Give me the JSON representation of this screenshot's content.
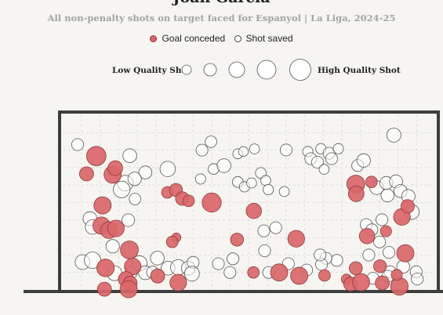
{
  "title": "Joan García",
  "subtitle": "All non-penalty shots on target faced for Espanyol | La Liga, 2024-25",
  "legend": {
    "goal": "Goal conceded",
    "saved": "Shot saved"
  },
  "size_legend": {
    "low": "Low Quality Shot",
    "high": "High Quality Shot"
  },
  "colors": {
    "goal_fill": "#d96669",
    "goal_stroke": "#8f3a3c",
    "saved_fill": "#ffffff",
    "saved_stroke": "#555555",
    "goal_frame": "#3d3d3d",
    "grid": "#d9d9d4"
  },
  "chart_data": {
    "type": "scatter",
    "title": "Joan García",
    "subtitle": "All non-penalty shots on target faced for Espanyol | La Liga, 2024-25",
    "grid": true,
    "x_range": [
      0,
      1
    ],
    "y_range": [
      0,
      1
    ],
    "series": [
      {
        "name": "Goal conceded",
        "outcome": "goal",
        "points": [
          {
            "x": 0.09,
            "y": 0.766,
            "q": 0.7
          },
          {
            "x": 0.064,
            "y": 0.664,
            "q": 0.42
          },
          {
            "x": 0.134,
            "y": 0.66,
            "q": 0.58
          },
          {
            "x": 0.141,
            "y": 0.697,
            "q": 0.45
          },
          {
            "x": 0.107,
            "y": 0.484,
            "q": 0.58
          },
          {
            "x": 0.104,
            "y": 0.368,
            "q": 0.58
          },
          {
            "x": 0.124,
            "y": 0.342,
            "q": 0.56
          },
          {
            "x": 0.143,
            "y": 0.352,
            "q": 0.55
          },
          {
            "x": 0.179,
            "y": 0.229,
            "q": 0.62
          },
          {
            "x": 0.188,
            "y": 0.134,
            "q": 0.55
          },
          {
            "x": 0.17,
            "y": 0.061,
            "q": 0.48
          },
          {
            "x": 0.115,
            "y": 0.126,
            "q": 0.6
          },
          {
            "x": 0.181,
            "y": 0.039,
            "q": 0.4
          },
          {
            "x": 0.112,
            "y": 0.004,
            "q": 0.42
          },
          {
            "x": 0.177,
            "y": 0.004,
            "q": 0.58
          },
          {
            "x": 0.281,
            "y": 0.558,
            "q": 0.28
          },
          {
            "x": 0.304,
            "y": 0.572,
            "q": 0.36
          },
          {
            "x": 0.321,
            "y": 0.523,
            "q": 0.38
          },
          {
            "x": 0.4,
            "y": 0.5,
            "q": 0.68
          },
          {
            "x": 0.338,
            "y": 0.51,
            "q": 0.28
          },
          {
            "x": 0.305,
            "y": 0.3,
            "q": 0.15
          },
          {
            "x": 0.294,
            "y": 0.275,
            "q": 0.28
          },
          {
            "x": 0.255,
            "y": 0.08,
            "q": 0.42
          },
          {
            "x": 0.31,
            "y": 0.042,
            "q": 0.55
          },
          {
            "x": 0.513,
            "y": 0.452,
            "q": 0.48
          },
          {
            "x": 0.468,
            "y": 0.288,
            "q": 0.36
          },
          {
            "x": 0.627,
            "y": 0.293,
            "q": 0.56
          },
          {
            "x": 0.512,
            "y": 0.1,
            "q": 0.28
          },
          {
            "x": 0.581,
            "y": 0.1,
            "q": 0.58
          },
          {
            "x": 0.635,
            "y": 0.081,
            "q": 0.58
          },
          {
            "x": 0.703,
            "y": 0.083,
            "q": 0.28
          },
          {
            "x": 0.787,
            "y": 0.606,
            "q": 0.62
          },
          {
            "x": 0.788,
            "y": 0.55,
            "q": 0.5
          },
          {
            "x": 0.829,
            "y": 0.618,
            "q": 0.28
          },
          {
            "x": 0.817,
            "y": 0.308,
            "q": 0.48
          },
          {
            "x": 0.868,
            "y": 0.336,
            "q": 0.26
          },
          {
            "x": 0.911,
            "y": 0.418,
            "q": 0.56
          },
          {
            "x": 0.926,
            "y": 0.478,
            "q": 0.38
          },
          {
            "x": 0.92,
            "y": 0.21,
            "q": 0.58
          },
          {
            "x": 0.787,
            "y": 0.124,
            "q": 0.36
          },
          {
            "x": 0.852,
            "y": 0.136,
            "q": 0.35
          },
          {
            "x": 0.762,
            "y": 0.061,
            "q": 0.22
          },
          {
            "x": 0.773,
            "y": 0.034,
            "q": 0.4
          },
          {
            "x": 0.801,
            "y": 0.044,
            "q": 0.58
          },
          {
            "x": 0.858,
            "y": 0.04,
            "q": 0.42
          },
          {
            "x": 0.904,
            "y": 0.02,
            "q": 0.6
          },
          {
            "x": 0.897,
            "y": 0.086,
            "q": 0.26
          }
        ]
      },
      {
        "name": "Shot saved",
        "outcome": "saved",
        "points": [
          {
            "x": 0.04,
            "y": 0.832,
            "q": 0.3
          },
          {
            "x": 0.18,
            "y": 0.768,
            "q": 0.4
          },
          {
            "x": 0.282,
            "y": 0.692,
            "q": 0.48
          },
          {
            "x": 0.222,
            "y": 0.672,
            "q": 0.36
          },
          {
            "x": 0.168,
            "y": 0.611,
            "q": 0.5
          },
          {
            "x": 0.158,
            "y": 0.575,
            "q": 0.55
          },
          {
            "x": 0.193,
            "y": 0.636,
            "q": 0.38
          },
          {
            "x": 0.073,
            "y": 0.408,
            "q": 0.4
          },
          {
            "x": 0.08,
            "y": 0.36,
            "q": 0.44
          },
          {
            "x": 0.194,
            "y": 0.52,
            "q": 0.28
          },
          {
            "x": 0.176,
            "y": 0.399,
            "q": 0.34
          },
          {
            "x": 0.134,
            "y": 0.25,
            "q": 0.38
          },
          {
            "x": 0.053,
            "y": 0.159,
            "q": 0.45
          },
          {
            "x": 0.08,
            "y": 0.17,
            "q": 0.54
          },
          {
            "x": 0.139,
            "y": 0.096,
            "q": 0.46
          },
          {
            "x": 0.184,
            "y": 0.1,
            "q": 0.3
          },
          {
            "x": 0.206,
            "y": 0.152,
            "q": 0.48
          },
          {
            "x": 0.222,
            "y": 0.098,
            "q": 0.4
          },
          {
            "x": 0.254,
            "y": 0.182,
            "q": 0.4
          },
          {
            "x": 0.241,
            "y": 0.102,
            "q": 0.3
          },
          {
            "x": 0.283,
            "y": 0.124,
            "q": 0.4
          },
          {
            "x": 0.31,
            "y": 0.129,
            "q": 0.48
          },
          {
            "x": 0.337,
            "y": 0.124,
            "q": 0.4
          },
          {
            "x": 0.35,
            "y": 0.158,
            "q": 0.3
          },
          {
            "x": 0.347,
            "y": 0.093,
            "q": 0.46
          },
          {
            "x": 0.374,
            "y": 0.8,
            "q": 0.3
          },
          {
            "x": 0.398,
            "y": 0.848,
            "q": 0.28
          },
          {
            "x": 0.37,
            "y": 0.635,
            "q": 0.22
          },
          {
            "x": 0.405,
            "y": 0.692,
            "q": 0.24
          },
          {
            "x": 0.433,
            "y": 0.711,
            "q": 0.4
          },
          {
            "x": 0.47,
            "y": 0.779,
            "q": 0.2
          },
          {
            "x": 0.485,
            "y": 0.792,
            "q": 0.18
          },
          {
            "x": 0.515,
            "y": 0.807,
            "q": 0.2
          },
          {
            "x": 0.47,
            "y": 0.618,
            "q": 0.24
          },
          {
            "x": 0.488,
            "y": 0.59,
            "q": 0.22
          },
          {
            "x": 0.507,
            "y": 0.612,
            "q": 0.2
          },
          {
            "x": 0.532,
            "y": 0.669,
            "q": 0.24
          },
          {
            "x": 0.545,
            "y": 0.627,
            "q": 0.2
          },
          {
            "x": 0.552,
            "y": 0.574,
            "q": 0.22
          },
          {
            "x": 0.595,
            "y": 0.563,
            "q": 0.2
          },
          {
            "x": 0.6,
            "y": 0.801,
            "q": 0.3
          },
          {
            "x": 0.658,
            "y": 0.792,
            "q": 0.22
          },
          {
            "x": 0.693,
            "y": 0.808,
            "q": 0.22
          },
          {
            "x": 0.715,
            "y": 0.782,
            "q": 0.3
          },
          {
            "x": 0.666,
            "y": 0.751,
            "q": 0.3
          },
          {
            "x": 0.684,
            "y": 0.731,
            "q": 0.3
          },
          {
            "x": 0.722,
            "y": 0.751,
            "q": 0.3
          },
          {
            "x": 0.702,
            "y": 0.69,
            "q": 0.2
          },
          {
            "x": 0.74,
            "y": 0.808,
            "q": 0.22
          },
          {
            "x": 0.889,
            "y": 0.886,
            "q": 0.42
          },
          {
            "x": 0.792,
            "y": 0.712,
            "q": 0.3
          },
          {
            "x": 0.808,
            "y": 0.741,
            "q": 0.38
          },
          {
            "x": 0.843,
            "y": 0.585,
            "q": 0.4
          },
          {
            "x": 0.869,
            "y": 0.612,
            "q": 0.36
          },
          {
            "x": 0.872,
            "y": 0.541,
            "q": 0.36
          },
          {
            "x": 0.895,
            "y": 0.621,
            "q": 0.36
          },
          {
            "x": 0.907,
            "y": 0.566,
            "q": 0.36
          },
          {
            "x": 0.928,
            "y": 0.536,
            "q": 0.38
          },
          {
            "x": 0.937,
            "y": 0.446,
            "q": 0.46
          },
          {
            "x": 0.857,
            "y": 0.402,
            "q": 0.3
          },
          {
            "x": 0.815,
            "y": 0.374,
            "q": 0.3
          },
          {
            "x": 0.83,
            "y": 0.344,
            "q": 0.3
          },
          {
            "x": 0.851,
            "y": 0.275,
            "q": 0.3
          },
          {
            "x": 0.822,
            "y": 0.2,
            "q": 0.3
          },
          {
            "x": 0.876,
            "y": 0.215,
            "q": 0.3
          },
          {
            "x": 0.736,
            "y": 0.169,
            "q": 0.3
          },
          {
            "x": 0.707,
            "y": 0.181,
            "q": 0.3
          },
          {
            "x": 0.695,
            "y": 0.146,
            "q": 0.3
          },
          {
            "x": 0.691,
            "y": 0.2,
            "q": 0.3
          },
          {
            "x": 0.879,
            "y": 0.104,
            "q": 0.3
          },
          {
            "x": 0.914,
            "y": 0.133,
            "q": 0.36
          },
          {
            "x": 0.949,
            "y": 0.104,
            "q": 0.3
          },
          {
            "x": 0.833,
            "y": 0.067,
            "q": 0.3
          },
          {
            "x": 0.873,
            "y": 0.078,
            "q": 0.3
          },
          {
            "x": 0.952,
            "y": 0.063,
            "q": 0.3
          },
          {
            "x": 0.655,
            "y": 0.114,
            "q": 0.3
          },
          {
            "x": 0.606,
            "y": 0.15,
            "q": 0.3
          },
          {
            "x": 0.553,
            "y": 0.1,
            "q": 0.3
          },
          {
            "x": 0.54,
            "y": 0.338,
            "q": 0.3
          },
          {
            "x": 0.572,
            "y": 0.356,
            "q": 0.3
          },
          {
            "x": 0.542,
            "y": 0.224,
            "q": 0.3
          },
          {
            "x": 0.418,
            "y": 0.15,
            "q": 0.3
          },
          {
            "x": 0.449,
            "y": 0.1,
            "q": 0.3
          },
          {
            "x": 0.457,
            "y": 0.178,
            "q": 0.3
          }
        ]
      }
    ]
  }
}
